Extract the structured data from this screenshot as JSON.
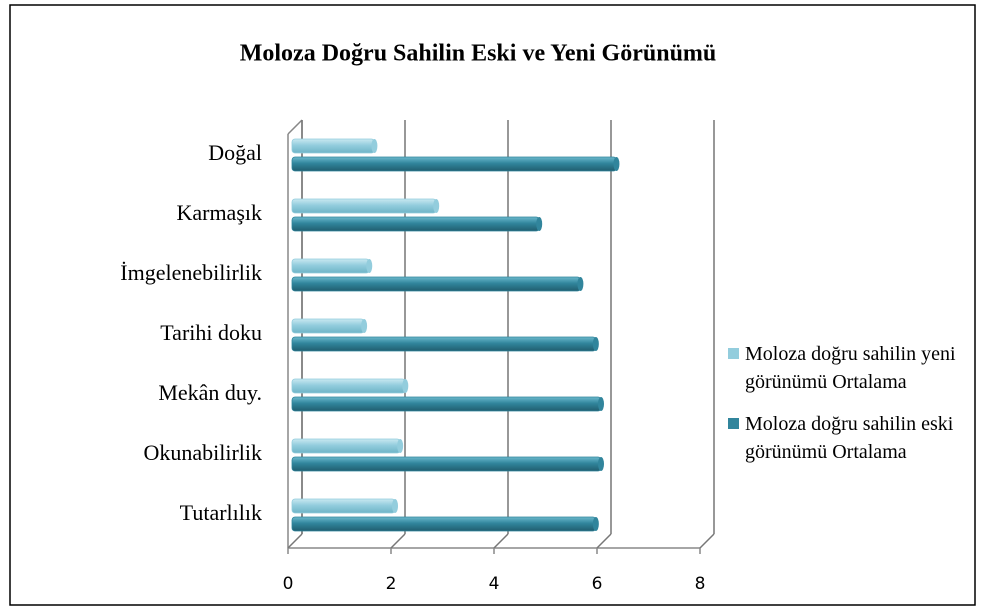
{
  "chart_data": {
    "type": "bar",
    "orientation": "horizontal",
    "title": "Moloza  Doğru Sahilin Eski ve Yeni Görünümü",
    "categories": [
      "Doğal",
      "Karmaşık",
      "İmgelenebilirlik",
      "Tarihi doku",
      "Mekân duy.",
      "Okunabilirlik",
      "Tutarlılık"
    ],
    "series": [
      {
        "name": "Moloza doğru sahilin yeni görünümü Ortalama",
        "color": "#93cddd",
        "values": [
          1.6,
          2.8,
          1.5,
          1.4,
          2.2,
          2.1,
          2.0
        ]
      },
      {
        "name": "Moloza doğru sahilin eski görünümü Ortalama",
        "color": "#31859c",
        "values": [
          6.3,
          4.8,
          5.6,
          5.9,
          6.0,
          6.0,
          5.9
        ]
      }
    ],
    "xlim": [
      0,
      8
    ],
    "xticks": [
      0,
      2,
      4,
      6,
      8
    ],
    "grid": true,
    "legend": "right"
  }
}
